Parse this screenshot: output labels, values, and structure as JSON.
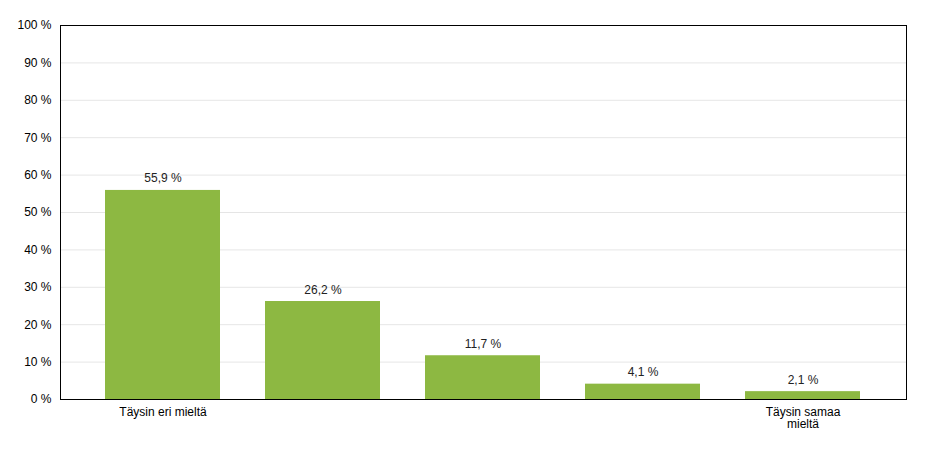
{
  "chart_data": {
    "type": "bar",
    "categories": [
      "Täysin eri mieltä",
      null,
      null,
      null,
      "Täysin samaa\nmieltä"
    ],
    "values": [
      55.9,
      26.2,
      11.7,
      4.1,
      2.1
    ],
    "value_labels": [
      "55,9 %",
      "26,2 %",
      "11,7 %",
      "4,1 %",
      "2,1 %"
    ],
    "data_labels": true,
    "color": "#8db842",
    "ylim": [
      0,
      100
    ],
    "yticks": [
      {
        "value": 0,
        "label": "0 %"
      },
      {
        "value": 10,
        "label": "10 %"
      },
      {
        "value": 20,
        "label": "20 %"
      },
      {
        "value": 30,
        "label": "30 %"
      },
      {
        "value": 40,
        "label": "40 %"
      },
      {
        "value": 50,
        "label": "50 %"
      },
      {
        "value": 60,
        "label": "60 %"
      },
      {
        "value": 70,
        "label": "70 %"
      },
      {
        "value": 80,
        "label": "80 %"
      },
      {
        "value": 90,
        "label": "90 %"
      },
      {
        "value": 100,
        "label": "100 %"
      }
    ],
    "grid": true
  }
}
